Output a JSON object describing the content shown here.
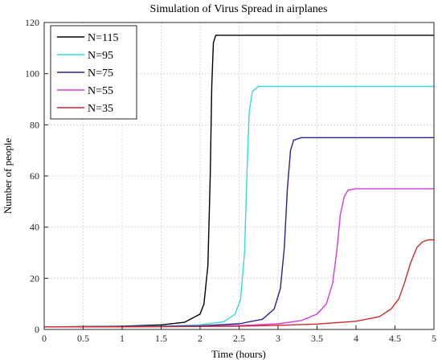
{
  "chart_data": {
    "type": "line",
    "title": "Simulation of Virus Spread in airplanes",
    "xlabel": "Time (hours)",
    "ylabel": "Number of people",
    "xlim": [
      0,
      5
    ],
    "ylim": [
      0,
      120
    ],
    "xticks": [
      0,
      0.5,
      1,
      1.5,
      2,
      2.5,
      3,
      3.5,
      4,
      4.5,
      5
    ],
    "xtick_labels": [
      "0",
      "0.5",
      "1",
      "1.5",
      "2",
      "2.5",
      "3",
      "3.5",
      "4",
      "4.5",
      "5"
    ],
    "yticks": [
      0,
      20,
      40,
      60,
      80,
      100,
      120
    ],
    "ytick_labels": [
      "0",
      "20",
      "40",
      "60",
      "80",
      "100",
      "120"
    ],
    "grid": true,
    "legend_position": "top-left",
    "series": [
      {
        "name": "N=115",
        "color": "#000000",
        "x": [
          0,
          0.5,
          1,
          1.5,
          1.8,
          2.0,
          2.05,
          2.1,
          2.13,
          2.15,
          2.17,
          2.2,
          2.5,
          3,
          3.5,
          4,
          4.5,
          5
        ],
        "y": [
          1,
          1.1,
          1.3,
          1.8,
          2.8,
          6,
          10,
          25,
          60,
          95,
          112,
          115,
          115,
          115,
          115,
          115,
          115,
          115
        ]
      },
      {
        "name": "N=95",
        "color": "#35d8e0",
        "x": [
          0,
          0.5,
          1,
          1.5,
          2.0,
          2.3,
          2.45,
          2.52,
          2.57,
          2.6,
          2.63,
          2.67,
          2.75,
          3,
          3.5,
          4,
          4.5,
          5
        ],
        "y": [
          1,
          1.05,
          1.15,
          1.35,
          1.8,
          3,
          6,
          12,
          30,
          60,
          85,
          93,
          95,
          95,
          95,
          95,
          95,
          95
        ]
      },
      {
        "name": "N=75",
        "color": "#23238f",
        "x": [
          0,
          0.5,
          1,
          1.5,
          2.0,
          2.5,
          2.8,
          2.95,
          3.03,
          3.08,
          3.12,
          3.16,
          3.2,
          3.3,
          3.5,
          4,
          4.5,
          5
        ],
        "y": [
          1,
          1.03,
          1.1,
          1.2,
          1.45,
          2.2,
          4,
          8,
          16,
          32,
          55,
          70,
          74,
          75,
          75,
          75,
          75,
          75
        ]
      },
      {
        "name": "N=55",
        "color": "#d33bd8",
        "x": [
          0,
          0.5,
          1,
          1.5,
          2.0,
          2.5,
          3.0,
          3.3,
          3.5,
          3.62,
          3.7,
          3.75,
          3.8,
          3.85,
          3.9,
          4.0,
          4.5,
          5
        ],
        "y": [
          1,
          1.02,
          1.06,
          1.12,
          1.25,
          1.5,
          2.2,
          3.5,
          6,
          10,
          18,
          30,
          45,
          52,
          54.5,
          55,
          55,
          55
        ]
      },
      {
        "name": "N=35",
        "color": "#cc2a2a",
        "x": [
          0,
          0.5,
          1,
          1.5,
          2.0,
          2.5,
          3.0,
          3.5,
          4.0,
          4.3,
          4.45,
          4.55,
          4.62,
          4.7,
          4.78,
          4.85,
          4.92,
          5
        ],
        "y": [
          1,
          1.01,
          1.03,
          1.07,
          1.15,
          1.3,
          1.6,
          2.1,
          3.2,
          5,
          8,
          12,
          18,
          26,
          32,
          34.2,
          35,
          35
        ]
      }
    ]
  }
}
